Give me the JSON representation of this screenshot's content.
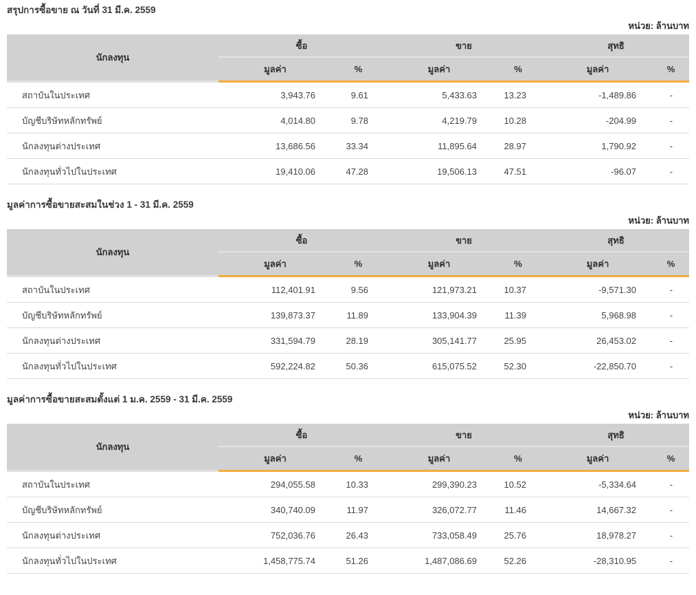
{
  "page": {
    "unit_label": "หน่วย: ล้านบาท"
  },
  "colors": {
    "accent_orange": "#f5ab3d",
    "header_bg": "#d1d1d1",
    "negative_red": "#f20a0a",
    "positive_green": "#0f8a0f"
  },
  "columns": {
    "investor": "นักลงทุน",
    "buy": "ซื้อ",
    "sell": "ขาย",
    "net": "สุทธิ",
    "value": "มูลค่า",
    "percent": "%"
  },
  "sections": [
    {
      "title": "สรุปการซื้อขาย ณ วันที่ 31 มี.ค. 2559",
      "rows": [
        {
          "investor": "สถาบันในประเทศ",
          "buy_value": "3,943.76",
          "buy_pct": "9.61",
          "sell_value": "5,433.63",
          "sell_pct": "13.23",
          "net_value": "-1,489.86",
          "net_class": "neg",
          "net_pct": "-"
        },
        {
          "investor": "บัญชีบริษัทหลักทรัพย์",
          "buy_value": "4,014.80",
          "buy_pct": "9.78",
          "sell_value": "4,219.79",
          "sell_pct": "10.28",
          "net_value": "-204.99",
          "net_class": "neg",
          "net_pct": "-"
        },
        {
          "investor": "นักลงทุนต่างประเทศ",
          "buy_value": "13,686.56",
          "buy_pct": "33.34",
          "sell_value": "11,895.64",
          "sell_pct": "28.97",
          "net_value": "1,790.92",
          "net_class": "pos",
          "net_pct": "-"
        },
        {
          "investor": "นักลงทุนทั่วไปในประเทศ",
          "buy_value": "19,410.06",
          "buy_pct": "47.28",
          "sell_value": "19,506.13",
          "sell_pct": "47.51",
          "net_value": "-96.07",
          "net_class": "neg",
          "net_pct": "-"
        }
      ]
    },
    {
      "title": "มูลค่าการซื้อขายสะสมในช่วง 1 - 31 มี.ค. 2559",
      "rows": [
        {
          "investor": "สถาบันในประเทศ",
          "buy_value": "112,401.91",
          "buy_pct": "9.56",
          "sell_value": "121,973.21",
          "sell_pct": "10.37",
          "net_value": "-9,571.30",
          "net_class": "neg",
          "net_pct": "-"
        },
        {
          "investor": "บัญชีบริษัทหลักทรัพย์",
          "buy_value": "139,873.37",
          "buy_pct": "11.89",
          "sell_value": "133,904.39",
          "sell_pct": "11.39",
          "net_value": "5,968.98",
          "net_class": "pos",
          "net_pct": "-"
        },
        {
          "investor": "นักลงทุนต่างประเทศ",
          "buy_value": "331,594.79",
          "buy_pct": "28.19",
          "sell_value": "305,141.77",
          "sell_pct": "25.95",
          "net_value": "26,453.02",
          "net_class": "pos",
          "net_pct": "-"
        },
        {
          "investor": "นักลงทุนทั่วไปในประเทศ",
          "buy_value": "592,224.82",
          "buy_pct": "50.36",
          "sell_value": "615,075.52",
          "sell_pct": "52.30",
          "net_value": "-22,850.70",
          "net_class": "neg",
          "net_pct": "-"
        }
      ]
    },
    {
      "title": "มูลค่าการซื้อขายสะสมตั้งแต่ 1 ม.ค. 2559 - 31 มี.ค. 2559",
      "rows": [
        {
          "investor": "สถาบันในประเทศ",
          "buy_value": "294,055.58",
          "buy_pct": "10.33",
          "sell_value": "299,390.23",
          "sell_pct": "10.52",
          "net_value": "-5,334.64",
          "net_class": "neg",
          "net_pct": "-"
        },
        {
          "investor": "บัญชีบริษัทหลักทรัพย์",
          "buy_value": "340,740.09",
          "buy_pct": "11.97",
          "sell_value": "326,072.77",
          "sell_pct": "11.46",
          "net_value": "14,667.32",
          "net_class": "pos",
          "net_pct": "-"
        },
        {
          "investor": "นักลงทุนต่างประเทศ",
          "buy_value": "752,036.76",
          "buy_pct": "26.43",
          "sell_value": "733,058.49",
          "sell_pct": "25.76",
          "net_value": "18,978.27",
          "net_class": "pos",
          "net_pct": "-"
        },
        {
          "investor": "นักลงทุนทั่วไปในประเทศ",
          "buy_value": "1,458,775.74",
          "buy_pct": "51.26",
          "sell_value": "1,487,086.69",
          "sell_pct": "52.26",
          "net_value": "-28,310.95",
          "net_class": "neg",
          "net_pct": "-"
        }
      ]
    }
  ]
}
